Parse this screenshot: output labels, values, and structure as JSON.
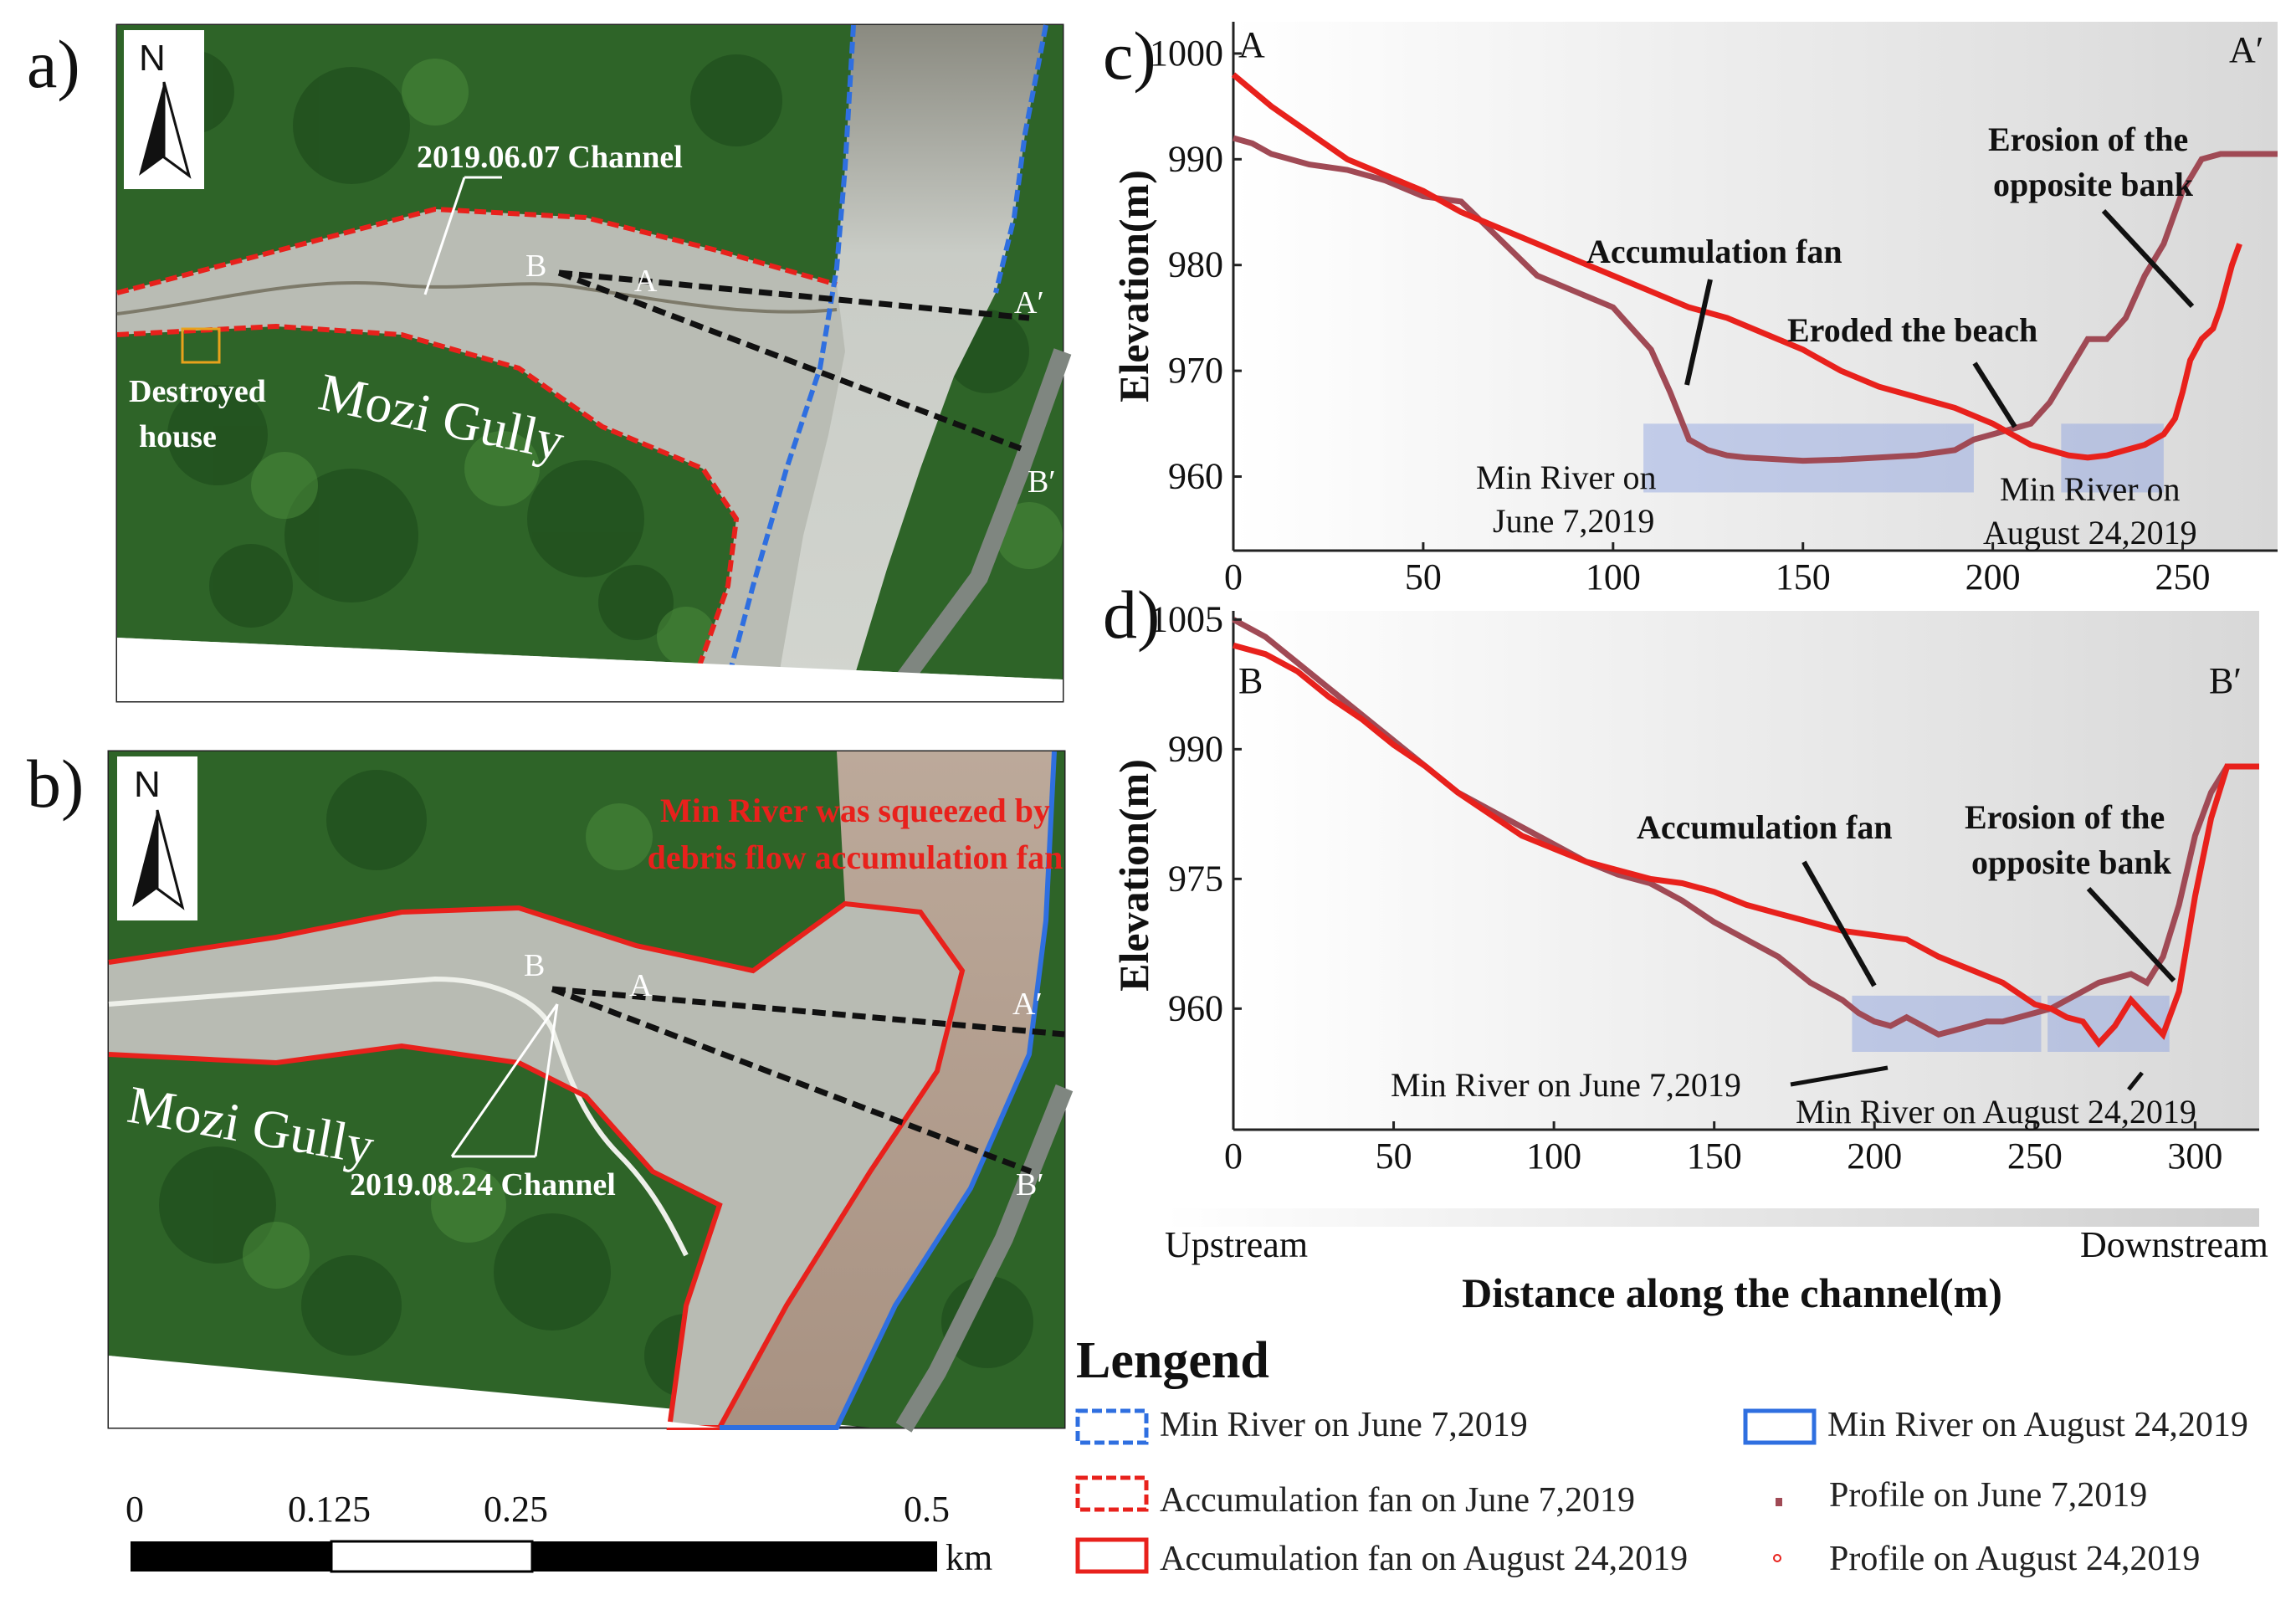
{
  "panels": {
    "a": "a)",
    "b": "b)",
    "c": "c)",
    "d": "d)"
  },
  "map_a": {
    "north": "N",
    "channel_label": "2019.06.07 Channel",
    "destroyed_house_line1": "Destroyed",
    "destroyed_house_line2": "house",
    "gully_name": "Mozi Gully",
    "point_a": "A",
    "point_a_prime": "A′",
    "point_b": "B",
    "point_b_prime": "B′"
  },
  "map_b": {
    "north": "N",
    "channel_label": "2019.08.24 Channel",
    "squeeze_line1": "Min River was squeezed by",
    "squeeze_line2": "debris flow accumulation fan",
    "gully_name": "Mozi Gully",
    "point_a": "A",
    "point_a_prime": "A′",
    "point_b": "B",
    "point_b_prime": "B′"
  },
  "scalebar": {
    "labels": [
      "0",
      "0.125",
      "0.25",
      "0.5"
    ],
    "unit": "km"
  },
  "chart_data": [
    {
      "type": "line",
      "panel": "c",
      "start_label": "A",
      "end_label": "A′",
      "ylabel": "Elevation(m)",
      "xlim": [
        0,
        275
      ],
      "ylim": [
        953,
        1003
      ],
      "xticks": [
        "0",
        "50",
        "100",
        "150",
        "200",
        "250"
      ],
      "yticks": [
        "960",
        "970",
        "980",
        "990",
        "1000"
      ],
      "series": [
        {
          "name": "Profile on June 7,2019",
          "color": "#a04a55",
          "x": [
            0,
            5,
            10,
            20,
            30,
            40,
            50,
            60,
            70,
            80,
            90,
            100,
            105,
            110,
            115,
            120,
            125,
            130,
            135,
            140,
            150,
            160,
            170,
            180,
            190,
            195,
            200,
            205,
            210,
            215,
            220,
            225,
            230,
            235,
            240,
            245,
            250,
            255,
            260,
            265,
            270,
            275
          ],
          "y": [
            992,
            991.5,
            990.5,
            989.5,
            989,
            988,
            986.5,
            986,
            982.5,
            979,
            977.5,
            976,
            974,
            972,
            968,
            963.5,
            962.5,
            962,
            961.8,
            961.7,
            961.5,
            961.6,
            961.8,
            962,
            962.5,
            963.5,
            964,
            964.5,
            965,
            967,
            970,
            973,
            973,
            975,
            979,
            982,
            987,
            990,
            990.5,
            990.5,
            990.5,
            990.5
          ]
        },
        {
          "name": "Profile on August 24,2019",
          "color": "#e8211c",
          "x": [
            0,
            10,
            20,
            30,
            40,
            50,
            60,
            70,
            80,
            90,
            100,
            110,
            120,
            130,
            140,
            150,
            160,
            170,
            180,
            190,
            200,
            205,
            210,
            215,
            220,
            225,
            230,
            235,
            240,
            245,
            248,
            250,
            252,
            255,
            258,
            260,
            263,
            265
          ],
          "y": [
            998,
            995,
            992.5,
            990,
            988.5,
            987,
            985,
            983.5,
            982,
            980.5,
            979,
            977.5,
            976,
            975,
            973.5,
            972,
            970,
            968.5,
            967.5,
            966.5,
            965,
            964,
            963,
            962.5,
            962,
            961.8,
            962,
            962.5,
            963,
            964,
            965.5,
            968,
            971,
            973,
            974,
            976,
            980,
            982
          ]
        }
      ],
      "annotations": [
        "Accumulation fan",
        "Eroded the beach",
        "Erosion of the",
        "opposite bank",
        "Min River on",
        "June 7,2019",
        "Min River on",
        "August 24,2019"
      ]
    },
    {
      "type": "line",
      "panel": "d",
      "start_label": "B",
      "end_label": "B′",
      "ylabel": "Elevation(m)",
      "xlabel": "Distance along the channel(m)",
      "xlim": [
        0,
        320
      ],
      "ylim": [
        946,
        1006
      ],
      "xticks": [
        "0",
        "50",
        "100",
        "150",
        "200",
        "250",
        "300"
      ],
      "yticks": [
        "960",
        "975",
        "990",
        "1005"
      ],
      "series": [
        {
          "name": "Profile on June 7,2019",
          "color": "#a04a55",
          "x": [
            0,
            10,
            20,
            30,
            40,
            50,
            60,
            70,
            80,
            90,
            100,
            110,
            120,
            130,
            140,
            150,
            160,
            170,
            180,
            190,
            195,
            200,
            205,
            210,
            215,
            220,
            225,
            230,
            235,
            240,
            245,
            250,
            255,
            260,
            265,
            270,
            275,
            280,
            285,
            290,
            295,
            300,
            305,
            310
          ],
          "y": [
            1005,
            1003,
            1000,
            997,
            994,
            991,
            988,
            985,
            983,
            981,
            979,
            977,
            975.5,
            974.5,
            972.5,
            970,
            968,
            966,
            963,
            961,
            959.5,
            958.5,
            958,
            959,
            958,
            957,
            957.5,
            958,
            958.5,
            958.5,
            959,
            959.5,
            960,
            961,
            962,
            963,
            963.5,
            964,
            963,
            966,
            972,
            980,
            985,
            988
          ]
        },
        {
          "name": "Profile on August 24,2019",
          "color": "#e8211c",
          "x": [
            0,
            5,
            10,
            20,
            30,
            40,
            50,
            60,
            70,
            80,
            90,
            100,
            110,
            120,
            130,
            140,
            150,
            160,
            170,
            180,
            190,
            200,
            210,
            220,
            230,
            240,
            250,
            255,
            260,
            265,
            270,
            275,
            280,
            285,
            290,
            295,
            300,
            305,
            310,
            315,
            320
          ],
          "y": [
            1002,
            1001.5,
            1001,
            999,
            996,
            993.5,
            990.5,
            988,
            985,
            982.5,
            980,
            978.5,
            977,
            976,
            975,
            974.5,
            973.5,
            972,
            971,
            970,
            969,
            968.5,
            968,
            966,
            964.5,
            963,
            960.5,
            960,
            959,
            958.5,
            956,
            958,
            961,
            959,
            957,
            962,
            973,
            982,
            988,
            988,
            988
          ]
        }
      ],
      "annotations": [
        "Accumulation fan",
        "Erosion of the",
        "opposite bank",
        "Min River on June 7,2019",
        "Min River on August 24,2019"
      ]
    }
  ],
  "flow": {
    "upstream": "Upstream",
    "downstream": "Downstream",
    "distance_label": "Distance along the channel(m)"
  },
  "legend": {
    "title": "Lengend",
    "items": [
      {
        "label": "Min River on June 7,2019",
        "color": "#2f6fe0"
      },
      {
        "label": "Min River on August 24,2019",
        "color": "#2f6fe0"
      },
      {
        "label": "Accumulation fan on June 7,2019",
        "color": "#e8211c"
      },
      {
        "label": "Profile on June 7,2019",
        "color": "#a04a55"
      },
      {
        "label": "Accumulation fan on August 24,2019",
        "color": "#e8211c"
      },
      {
        "label": "Profile on August 24,2019",
        "color": "#e8211c"
      }
    ]
  }
}
